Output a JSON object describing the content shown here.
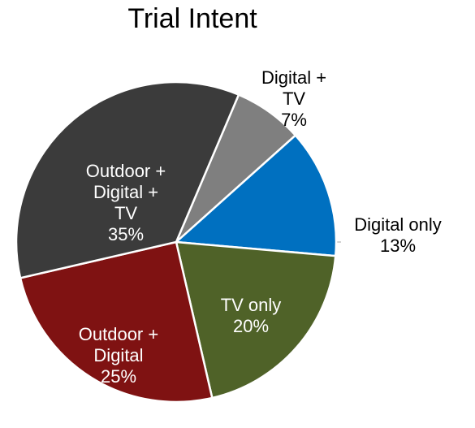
{
  "chart_data": {
    "type": "pie",
    "title": "Trial Intent",
    "categories": [
      "Digital + TV",
      "Digital only",
      "TV only",
      "Outdoor + Digital",
      "Outdoor + Digital + TV"
    ],
    "values": [
      7,
      13,
      20,
      25,
      35
    ],
    "value_labels": [
      "7%",
      "13%",
      "20%",
      "25%",
      "35%"
    ],
    "colors": [
      "#7f7f7f",
      "#0070c0",
      "#4f6228",
      "#7f1212",
      "#3b3b3b"
    ]
  }
}
